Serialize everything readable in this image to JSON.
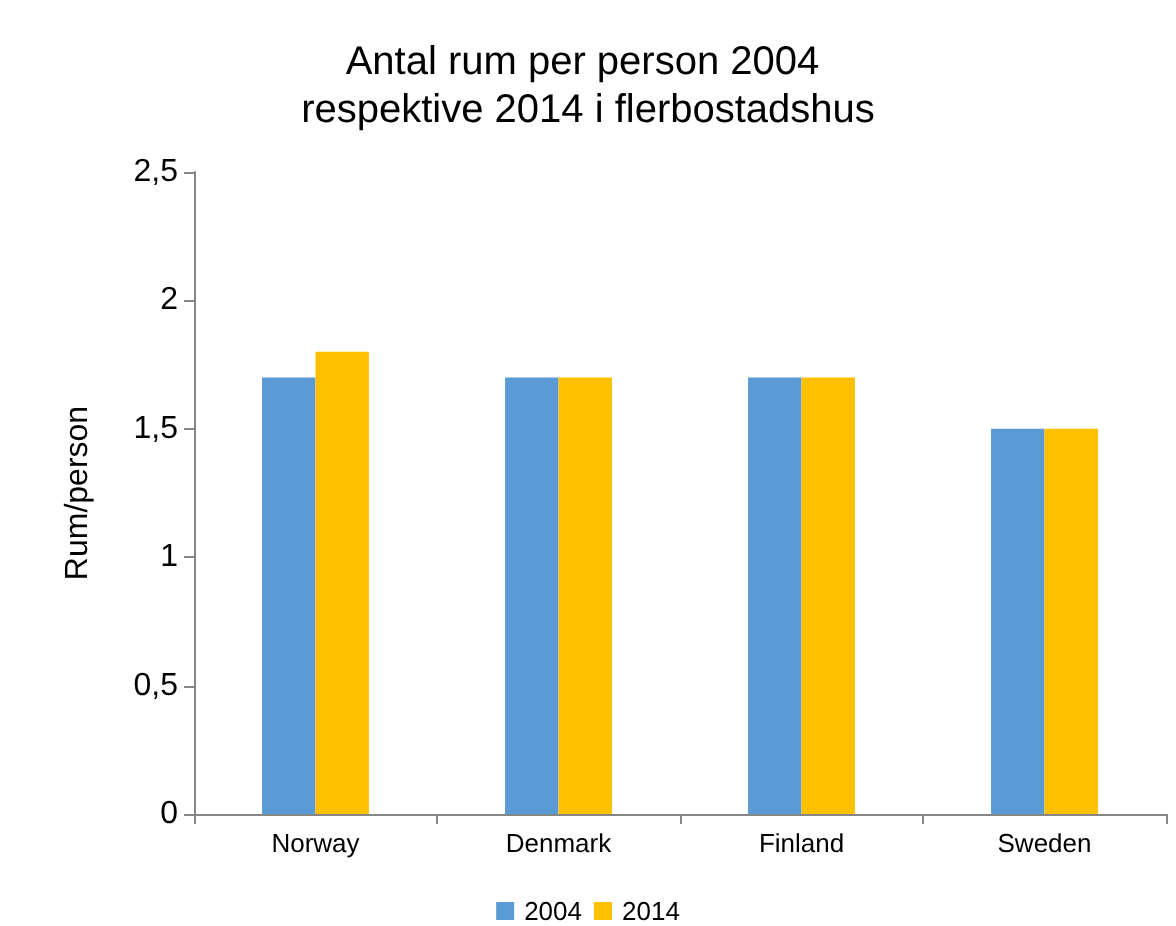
{
  "chart_data": {
    "type": "bar",
    "title": "Antal rum per person 2004 respektive 2014 i flerbostadshus",
    "ylabel": "Rum/person",
    "categories": [
      "Norway",
      "Denmark",
      "Finland",
      "Sweden"
    ],
    "series": [
      {
        "name": "2004",
        "color": "#5b9bd5",
        "values": [
          1.7,
          1.7,
          1.7,
          1.5
        ]
      },
      {
        "name": "2014",
        "color": "#ffc000",
        "values": [
          1.8,
          1.7,
          1.7,
          1.5
        ]
      }
    ],
    "ylim": [
      0,
      2.5
    ],
    "yticks": [
      {
        "value": 0,
        "label": "0"
      },
      {
        "value": 0.5,
        "label": "0,5"
      },
      {
        "value": 1,
        "label": "1"
      },
      {
        "value": 1.5,
        "label": "1,5"
      },
      {
        "value": 2,
        "label": "2"
      },
      {
        "value": 2.5,
        "label": "2,5"
      }
    ],
    "grid": false,
    "legend": "bottom"
  }
}
